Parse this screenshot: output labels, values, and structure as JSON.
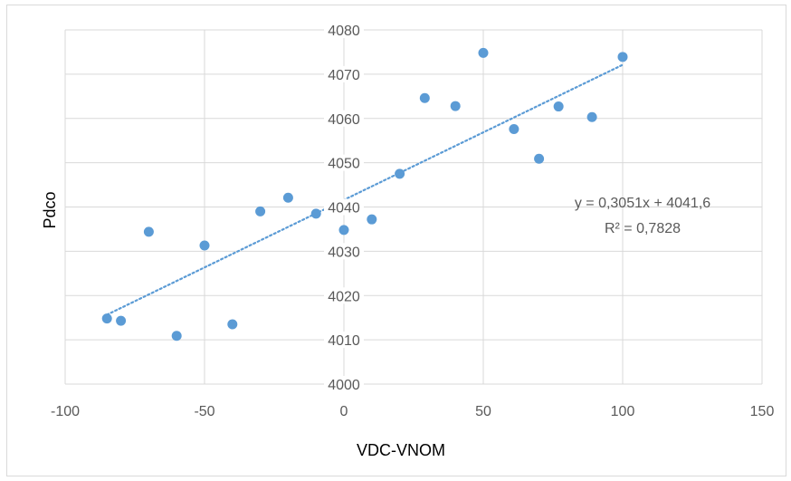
{
  "chart_data": {
    "type": "scatter",
    "title": "",
    "xlabel": "VDC-VNOM",
    "ylabel": "Pdco",
    "xlim": [
      -100,
      150
    ],
    "ylim": [
      4000,
      4080
    ],
    "x_ticks": [
      -100,
      -50,
      0,
      50,
      100,
      150
    ],
    "y_ticks": [
      4000,
      4010,
      4020,
      4030,
      4040,
      4050,
      4060,
      4070,
      4080
    ],
    "grid": "vertical and horizontal major gridlines",
    "legend": "none",
    "series": [
      {
        "color": "#5b9bd5",
        "points": [
          {
            "x": -85,
            "y": 4014.8
          },
          {
            "x": -80,
            "y": 4014.3
          },
          {
            "x": -70,
            "y": 4034.4
          },
          {
            "x": -60,
            "y": 4010.9
          },
          {
            "x": -50,
            "y": 4031.3
          },
          {
            "x": -40,
            "y": 4013.5
          },
          {
            "x": -30,
            "y": 4039.0
          },
          {
            "x": -20,
            "y": 4042.1
          },
          {
            "x": -10,
            "y": 4038.5
          },
          {
            "x": 0,
            "y": 4034.8
          },
          {
            "x": 10,
            "y": 4037.2
          },
          {
            "x": 20,
            "y": 4047.5
          },
          {
            "x": 29,
            "y": 4064.6
          },
          {
            "x": 40,
            "y": 4062.8
          },
          {
            "x": 50,
            "y": 4074.8
          },
          {
            "x": 61,
            "y": 4057.6
          },
          {
            "x": 70,
            "y": 4050.9
          },
          {
            "x": 77,
            "y": 4062.7
          },
          {
            "x": 89,
            "y": 4060.3
          },
          {
            "x": 100,
            "y": 4073.9
          }
        ]
      }
    ],
    "trendline": {
      "type": "linear",
      "slope": 0.3051,
      "intercept": 4041.6,
      "x_range": [
        -85,
        100
      ],
      "color": "#5b9bd5",
      "style": "dotted"
    },
    "annotations": {
      "equation": "y = 0,3051x + 4041,6",
      "r_squared": "R² = 0,7828"
    }
  }
}
